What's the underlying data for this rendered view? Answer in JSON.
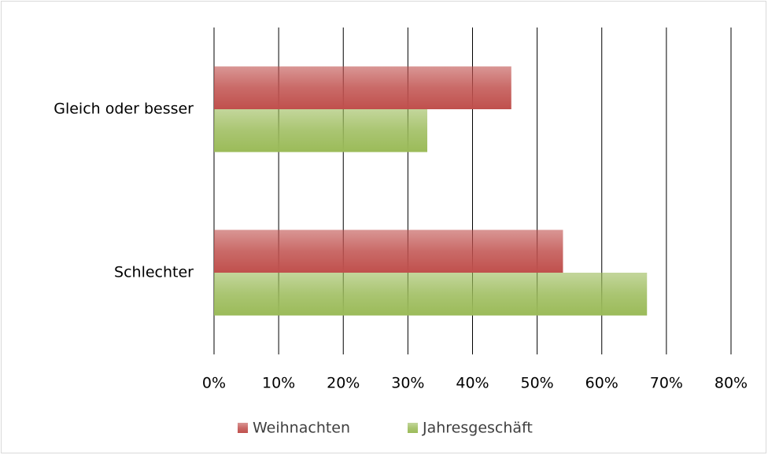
{
  "chart_data": {
    "type": "barh",
    "categories": [
      "Gleich oder besser",
      "Schlechter"
    ],
    "series": [
      {
        "name": "Weihnachten",
        "color": "#c0504d",
        "values": [
          46,
          54
        ]
      },
      {
        "name": "Jahresgeschäft",
        "color": "#9bbb59",
        "values": [
          33,
          67
        ]
      }
    ],
    "xlim": [
      0,
      80
    ],
    "xticks": [
      {
        "value": 0,
        "label": "0%"
      },
      {
        "value": 10,
        "label": "10%"
      },
      {
        "value": 20,
        "label": "20%"
      },
      {
        "value": 30,
        "label": "30%"
      },
      {
        "value": 40,
        "label": "40%"
      },
      {
        "value": 50,
        "label": "50%"
      },
      {
        "value": 60,
        "label": "60%"
      },
      {
        "value": 70,
        "label": "70%"
      },
      {
        "value": 80,
        "label": "80%"
      }
    ],
    "grid": true,
    "legend": "bottom"
  }
}
